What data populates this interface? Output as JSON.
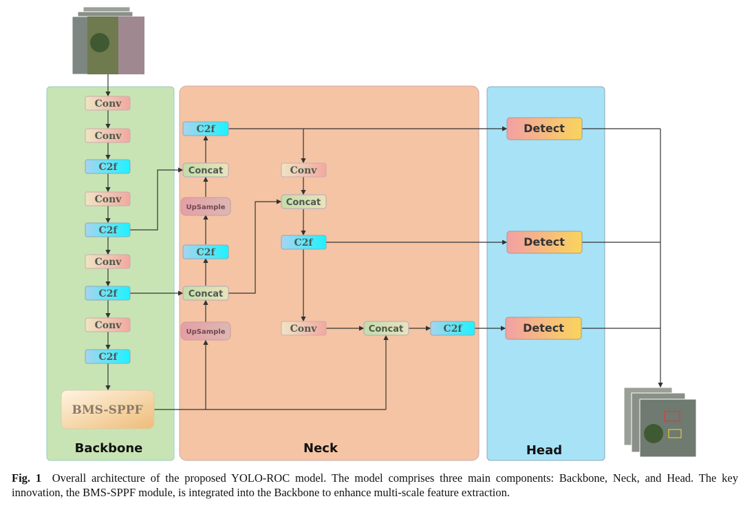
{
  "panels": {
    "backbone": "Backbone",
    "neck": "Neck",
    "head": "Head"
  },
  "nodes": {
    "conv": "Conv",
    "c2f": "C2f",
    "concat": "Concat",
    "upsample": "UpSample",
    "detect": "Detect",
    "bms_sppf": "BMS-SPPF"
  },
  "caption": {
    "label": "Fig. 1",
    "text": "Overall architecture of the proposed YOLO-ROC model. The model comprises three main components: Backbone, Neck, and Head. The key innovation, the BMS-SPPF module, is integrated into the Backbone to enhance multi-scale feature extraction."
  },
  "colors": {
    "backbone_bg": "#c8e4b4",
    "neck_bg": "#f4c4a4",
    "head_bg": "#a8e2f6"
  }
}
